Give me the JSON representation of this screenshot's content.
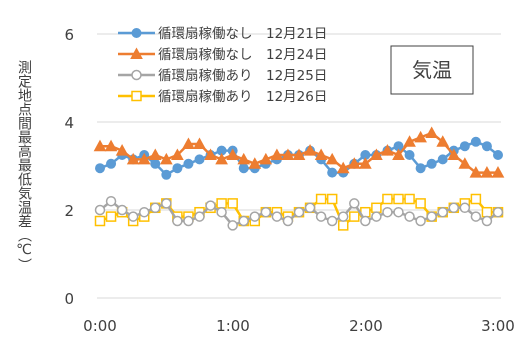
{
  "chart_data": {
    "type": "line",
    "title": "気温",
    "ylabel": "測定地点間最高最低気温差（℃）",
    "xlabel": "",
    "x_ticks": [
      "0:00",
      "1:00",
      "2:00",
      "3:00"
    ],
    "y_ticks": [
      "0",
      "2",
      "4",
      "6"
    ],
    "xlim": [
      0,
      180
    ],
    "ylim": [
      0,
      6
    ],
    "grid": "horizontal",
    "legend_position": "top-left",
    "x": [
      0,
      5,
      10,
      15,
      20,
      25,
      30,
      35,
      40,
      45,
      50,
      55,
      60,
      65,
      70,
      75,
      80,
      85,
      90,
      95,
      100,
      105,
      110,
      115,
      120,
      125,
      130,
      135,
      140,
      145,
      150,
      155,
      160,
      165,
      170,
      175,
      180
    ],
    "series": [
      {
        "name": "循環扇稼働なし　12月21日",
        "color": "#5b9bd5",
        "marker": "circle",
        "values": [
          2.95,
          3.05,
          3.25,
          3.15,
          3.25,
          3.05,
          2.8,
          2.95,
          3.05,
          3.15,
          3.25,
          3.35,
          3.35,
          2.95,
          2.95,
          3.05,
          3.15,
          3.25,
          3.25,
          3.35,
          3.15,
          2.85,
          2.85,
          3.05,
          3.25,
          3.25,
          3.35,
          3.45,
          3.25,
          2.95,
          3.05,
          3.15,
          3.35,
          3.45,
          3.55,
          3.45,
          3.25
        ]
      },
      {
        "name": "循環扇稼働なし　12月24日",
        "color": "#ed7d31",
        "marker": "triangle",
        "values": [
          3.45,
          3.45,
          3.35,
          3.15,
          3.15,
          3.25,
          3.15,
          3.25,
          3.5,
          3.5,
          3.25,
          3.15,
          3.25,
          3.15,
          3.05,
          3.15,
          3.25,
          3.25,
          3.25,
          3.35,
          3.25,
          3.15,
          2.95,
          3.05,
          3.05,
          3.25,
          3.35,
          3.25,
          3.55,
          3.65,
          3.75,
          3.55,
          3.25,
          3.05,
          2.85,
          2.85,
          2.85
        ]
      },
      {
        "name": "循環扇稼働あり　12月25日",
        "color": "#a5a5a5",
        "marker": "circle-open",
        "values": [
          2.0,
          2.2,
          2.0,
          1.85,
          1.95,
          2.05,
          2.15,
          1.75,
          1.75,
          1.85,
          2.1,
          1.95,
          1.65,
          1.75,
          1.85,
          1.95,
          1.85,
          1.75,
          1.95,
          2.05,
          1.85,
          1.75,
          1.85,
          2.15,
          1.75,
          1.85,
          1.95,
          1.95,
          1.85,
          1.75,
          1.85,
          1.95,
          2.05,
          2.05,
          1.85,
          1.75,
          1.95
        ]
      },
      {
        "name": "循環扇稼働あり　12月26日",
        "color": "#ffc000",
        "marker": "square-open",
        "values": [
          1.75,
          1.85,
          1.95,
          1.75,
          1.85,
          2.05,
          2.15,
          1.85,
          1.85,
          1.95,
          2.05,
          2.15,
          2.15,
          1.75,
          1.75,
          1.95,
          1.95,
          1.85,
          1.95,
          2.05,
          2.25,
          2.25,
          1.65,
          1.85,
          1.95,
          2.05,
          2.25,
          2.25,
          2.25,
          2.15,
          1.85,
          1.95,
          2.05,
          2.15,
          2.25,
          1.95,
          1.95
        ]
      }
    ]
  }
}
